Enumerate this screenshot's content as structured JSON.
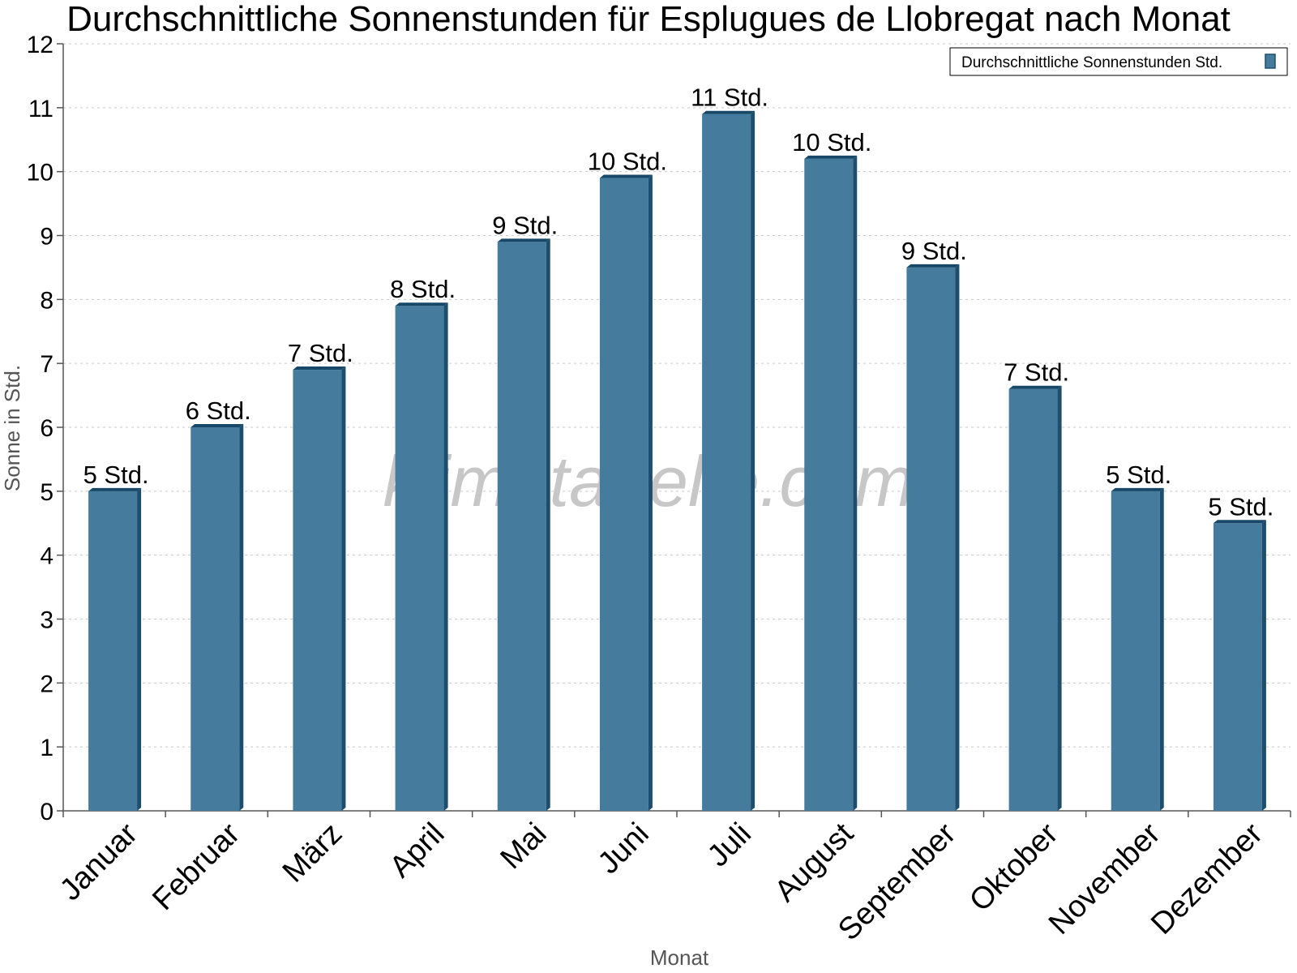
{
  "watermark": "klimatabelle.com",
  "chart_data": {
    "type": "bar",
    "title": "Durchschnittliche Sonnenstunden für Esplugues de Llobregat nach Monat",
    "xlabel": "Monat",
    "ylabel": "Sonne in Std.",
    "ylim": [
      0,
      12
    ],
    "yticks": [
      "0",
      "1",
      "2",
      "3",
      "4",
      "5",
      "6",
      "7",
      "8",
      "9",
      "10",
      "11",
      "12"
    ],
    "grid": true,
    "legend_position": "top-right",
    "categories": [
      "Januar",
      "Februar",
      "März",
      "April",
      "Mai",
      "Juni",
      "Juli",
      "August",
      "September",
      "Oktober",
      "November",
      "Dezember"
    ],
    "series": [
      {
        "name": "Durchschnittliche Sonnenstunden Std.",
        "color": "#457b9d",
        "values": [
          5.0,
          6.0,
          6.9,
          7.9,
          8.9,
          9.9,
          10.9,
          10.2,
          8.5,
          6.6,
          5.0,
          4.5
        ],
        "labels": [
          "5 Std.",
          "6 Std.",
          "7 Std.",
          "8 Std.",
          "9 Std.",
          "10 Std.",
          "11 Std.",
          "10 Std.",
          "9 Std.",
          "7 Std.",
          "5 Std.",
          "5 Std."
        ]
      }
    ]
  },
  "colors": {
    "bar_front": "#457b9d",
    "bar_side": "#1d4e6e",
    "bar_top": "#174868",
    "grid": "#c8c8c8",
    "axis": "#555555"
  }
}
